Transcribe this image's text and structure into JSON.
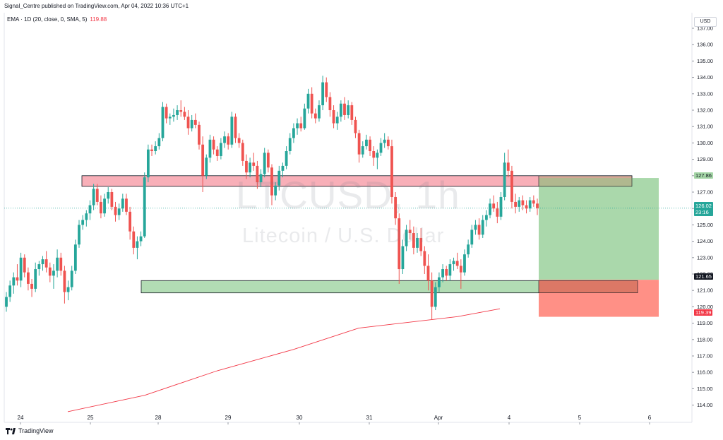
{
  "header": {
    "publisher": "Signal_Centre published on TradingView.com, Apr 04, 2022 10:36 UTC+1"
  },
  "indicator": {
    "label": "EMA · 1D (20, close, 0, SMA, 5)",
    "value": "119.88"
  },
  "watermark": {
    "symbol": "LTCUSD, 1h",
    "name": "Litecoin / U.S. Dollar"
  },
  "currency": "USD",
  "footer": {
    "brand": "TradingView"
  },
  "price_labels": {
    "target": "127.86",
    "current_price": "126.02",
    "countdown": "23:16",
    "entry": "121.65",
    "stop": "119.39"
  },
  "colors": {
    "up": "#26a69a",
    "down": "#ef5350",
    "ema": "#f23645",
    "resistance_fill": "#f7a1ac",
    "support_fill": "#a5d6a7",
    "profit_zone": "#a5d6a7",
    "loss_zone": "#ff8a80"
  },
  "chart_data": {
    "type": "candlestick",
    "symbol": "LTCUSD",
    "interval": "1h",
    "y_range": [
      113.5,
      137.6
    ],
    "y_ticks": [
      "137.00",
      "136.00",
      "135.00",
      "134.00",
      "133.00",
      "132.00",
      "131.00",
      "130.00",
      "129.00",
      "128.00",
      "127.00",
      "126.00",
      "125.00",
      "124.00",
      "123.00",
      "122.00",
      "121.00",
      "120.00",
      "119.00",
      "118.00",
      "117.00",
      "116.00",
      "115.00",
      "114.00"
    ],
    "x_ticks": [
      "24",
      "25",
      "28",
      "29",
      "30",
      "31",
      "Apr",
      "4",
      "5",
      "6"
    ],
    "ohlc": [
      [
        120.0,
        120.9,
        119.7,
        120.6
      ],
      [
        120.6,
        121.6,
        120.3,
        121.3
      ],
      [
        121.3,
        122.1,
        120.8,
        121.8
      ],
      [
        121.8,
        122.6,
        121.3,
        121.6
      ],
      [
        121.6,
        123.3,
        121.2,
        123.0
      ],
      [
        123.0,
        123.2,
        121.8,
        122.1
      ],
      [
        122.1,
        122.4,
        121.0,
        121.4
      ],
      [
        121.4,
        121.7,
        120.6,
        121.1
      ],
      [
        121.1,
        122.7,
        120.9,
        122.3
      ],
      [
        122.3,
        122.8,
        121.9,
        122.6
      ],
      [
        122.6,
        123.1,
        122.2,
        122.9
      ],
      [
        122.9,
        123.4,
        122.1,
        122.4
      ],
      [
        122.4,
        122.7,
        121.5,
        121.9
      ],
      [
        121.9,
        122.6,
        121.1,
        122.2
      ],
      [
        122.2,
        123.5,
        121.8,
        123.0
      ],
      [
        123.0,
        123.3,
        121.9,
        122.2
      ],
      [
        122.2,
        122.5,
        120.2,
        120.9
      ],
      [
        120.9,
        121.6,
        120.4,
        121.2
      ],
      [
        121.2,
        122.5,
        121.0,
        122.2
      ],
      [
        122.2,
        124.1,
        122.0,
        123.8
      ],
      [
        123.8,
        125.3,
        123.6,
        125.0
      ],
      [
        125.0,
        125.6,
        124.7,
        125.3
      ],
      [
        125.3,
        125.9,
        124.9,
        125.7
      ],
      [
        125.7,
        126.5,
        125.3,
        126.2
      ],
      [
        126.2,
        127.5,
        125.9,
        127.2
      ],
      [
        127.2,
        127.5,
        126.2,
        126.4
      ],
      [
        126.4,
        126.8,
        125.4,
        125.7
      ],
      [
        125.7,
        126.9,
        125.5,
        126.6
      ],
      [
        126.6,
        127.3,
        126.3,
        127.0
      ],
      [
        127.0,
        127.2,
        125.9,
        126.1
      ],
      [
        126.1,
        126.4,
        125.2,
        125.6
      ],
      [
        125.6,
        126.3,
        125.3,
        126.0
      ],
      [
        126.0,
        126.9,
        125.8,
        126.6
      ],
      [
        126.6,
        126.9,
        125.6,
        125.8
      ],
      [
        125.8,
        126.1,
        124.1,
        124.6
      ],
      [
        124.6,
        124.9,
        123.2,
        123.6
      ],
      [
        123.6,
        124.3,
        122.9,
        124.0
      ],
      [
        124.0,
        124.6,
        123.7,
        124.3
      ],
      [
        124.3,
        128.2,
        124.2,
        127.9
      ],
      [
        127.9,
        129.9,
        127.6,
        129.6
      ],
      [
        129.6,
        129.9,
        129.2,
        129.5
      ],
      [
        129.5,
        130.1,
        129.3,
        129.8
      ],
      [
        129.8,
        130.6,
        129.6,
        130.3
      ],
      [
        130.3,
        132.5,
        130.1,
        132.2
      ],
      [
        132.2,
        132.4,
        131.2,
        131.5
      ],
      [
        131.5,
        131.8,
        131.1,
        131.6
      ],
      [
        131.6,
        132.1,
        131.3,
        131.7
      ],
      [
        131.7,
        132.3,
        131.4,
        132.0
      ],
      [
        132.0,
        132.6,
        131.6,
        131.9
      ],
      [
        131.9,
        132.2,
        131.4,
        131.6
      ],
      [
        131.6,
        132.0,
        130.5,
        130.9
      ],
      [
        130.9,
        131.7,
        130.7,
        131.4
      ],
      [
        131.4,
        131.8,
        130.9,
        131.1
      ],
      [
        131.1,
        131.3,
        129.6,
        129.9
      ],
      [
        129.9,
        130.4,
        127.0,
        128.0
      ],
      [
        128.0,
        129.3,
        127.8,
        129.1
      ],
      [
        129.1,
        130.5,
        128.8,
        130.2
      ],
      [
        130.2,
        130.4,
        129.3,
        129.6
      ],
      [
        129.6,
        129.8,
        128.9,
        129.2
      ],
      [
        129.2,
        130.3,
        129.0,
        130.0
      ],
      [
        130.0,
        130.7,
        129.7,
        130.4
      ],
      [
        130.4,
        130.6,
        129.6,
        129.9
      ],
      [
        129.9,
        131.9,
        129.7,
        131.6
      ],
      [
        131.6,
        131.8,
        130.0,
        130.3
      ],
      [
        130.3,
        130.6,
        129.7,
        130.0
      ],
      [
        130.0,
        130.2,
        128.6,
        128.9
      ],
      [
        128.9,
        129.3,
        127.8,
        128.2
      ],
      [
        128.2,
        129.1,
        127.9,
        128.8
      ],
      [
        128.8,
        129.4,
        128.3,
        128.6
      ],
      [
        128.6,
        128.9,
        127.2,
        127.6
      ],
      [
        127.6,
        128.4,
        127.3,
        128.1
      ],
      [
        128.1,
        129.7,
        127.9,
        129.4
      ],
      [
        129.4,
        129.6,
        128.2,
        128.5
      ],
      [
        128.5,
        128.7,
        126.2,
        126.8
      ],
      [
        126.8,
        127.6,
        126.5,
        127.4
      ],
      [
        127.4,
        128.6,
        127.1,
        128.3
      ],
      [
        128.3,
        128.8,
        127.9,
        128.6
      ],
      [
        128.6,
        129.8,
        128.4,
        129.5
      ],
      [
        129.5,
        130.6,
        129.3,
        130.3
      ],
      [
        130.3,
        131.2,
        130.0,
        130.9
      ],
      [
        130.9,
        131.5,
        130.5,
        131.2
      ],
      [
        131.2,
        131.6,
        130.7,
        130.9
      ],
      [
        130.9,
        132.4,
        130.8,
        132.1
      ],
      [
        132.1,
        133.3,
        131.8,
        133.0
      ],
      [
        133.0,
        133.4,
        131.5,
        131.8
      ],
      [
        131.8,
        132.1,
        131.2,
        131.5
      ],
      [
        131.5,
        132.6,
        131.3,
        132.3
      ],
      [
        132.3,
        134.1,
        132.0,
        133.7
      ],
      [
        133.7,
        134.0,
        132.5,
        132.8
      ],
      [
        132.8,
        133.1,
        131.6,
        132.0
      ],
      [
        132.0,
        132.3,
        130.9,
        131.2
      ],
      [
        131.2,
        131.9,
        130.8,
        131.6
      ],
      [
        131.6,
        132.6,
        131.3,
        132.4
      ],
      [
        132.4,
        132.8,
        131.4,
        131.7
      ],
      [
        131.7,
        132.6,
        131.5,
        132.3
      ],
      [
        132.3,
        132.5,
        131.1,
        131.4
      ],
      [
        131.4,
        131.6,
        130.3,
        130.6
      ],
      [
        130.6,
        130.8,
        128.8,
        129.3
      ],
      [
        129.3,
        130.1,
        129.1,
        129.8
      ],
      [
        129.8,
        130.5,
        129.6,
        130.2
      ],
      [
        130.2,
        130.4,
        129.2,
        129.5
      ],
      [
        129.5,
        129.8,
        128.6,
        129.1
      ],
      [
        129.1,
        129.6,
        128.4,
        129.4
      ],
      [
        129.4,
        130.3,
        129.2,
        130.0
      ],
      [
        130.0,
        130.6,
        129.7,
        130.2
      ],
      [
        130.2,
        130.4,
        129.6,
        129.8
      ],
      [
        129.8,
        130.2,
        126.3,
        126.7
      ],
      [
        126.7,
        127.0,
        125.0,
        125.4
      ],
      [
        125.4,
        125.7,
        121.4,
        122.3
      ],
      [
        122.3,
        124.1,
        122.0,
        123.7
      ],
      [
        123.7,
        125.0,
        123.4,
        124.7
      ],
      [
        124.7,
        125.3,
        124.1,
        124.5
      ],
      [
        124.5,
        124.9,
        123.2,
        123.6
      ],
      [
        123.6,
        124.5,
        123.3,
        124.2
      ],
      [
        124.2,
        124.8,
        123.1,
        123.4
      ],
      [
        123.4,
        123.7,
        122.0,
        122.5
      ],
      [
        122.5,
        123.2,
        121.0,
        121.6
      ],
      [
        121.6,
        122.1,
        119.2,
        120.0
      ],
      [
        120.0,
        121.5,
        119.8,
        121.2
      ],
      [
        121.2,
        122.1,
        120.9,
        121.8
      ],
      [
        121.8,
        122.6,
        121.5,
        122.3
      ],
      [
        122.3,
        122.5,
        121.6,
        121.9
      ],
      [
        121.9,
        122.9,
        121.6,
        122.6
      ],
      [
        122.6,
        123.0,
        122.2,
        122.8
      ],
      [
        122.8,
        123.3,
        122.3,
        122.5
      ],
      [
        122.5,
        122.9,
        121.1,
        122.1
      ],
      [
        122.1,
        123.5,
        121.9,
        123.2
      ],
      [
        123.2,
        124.1,
        123.0,
        123.8
      ],
      [
        123.8,
        125.0,
        123.6,
        124.7
      ],
      [
        124.7,
        125.3,
        124.4,
        125.0
      ],
      [
        125.0,
        125.4,
        124.1,
        124.4
      ],
      [
        124.4,
        125.6,
        124.2,
        125.3
      ],
      [
        125.3,
        125.9,
        124.9,
        125.6
      ],
      [
        125.6,
        126.6,
        125.4,
        126.3
      ],
      [
        126.3,
        126.8,
        125.8,
        126.0
      ],
      [
        126.0,
        126.4,
        125.1,
        125.5
      ],
      [
        125.5,
        127.0,
        125.3,
        126.7
      ],
      [
        126.7,
        129.4,
        126.5,
        128.8
      ],
      [
        128.8,
        129.6,
        127.9,
        128.3
      ],
      [
        128.3,
        128.6,
        126.0,
        126.4
      ],
      [
        126.4,
        126.9,
        125.7,
        126.1
      ],
      [
        126.1,
        126.7,
        125.8,
        126.5
      ],
      [
        126.5,
        126.8,
        125.9,
        126.2
      ],
      [
        126.2,
        126.5,
        125.7,
        126.0
      ],
      [
        126.0,
        126.7,
        125.8,
        126.5
      ],
      [
        126.5,
        126.8,
        126.1,
        126.3
      ],
      [
        126.3,
        126.6,
        125.6,
        126.02
      ]
    ],
    "ema_1d": {
      "name": "EMA · 1D (20, close, 0, SMA, 5)",
      "points": [
        [
          96,
          113.6
        ],
        [
          205,
          114.6
        ],
        [
          308,
          116.1
        ],
        [
          416,
          117.4
        ],
        [
          508,
          118.7
        ],
        [
          648,
          119.4
        ],
        [
          708,
          119.88
        ]
      ]
    },
    "zones": [
      {
        "name": "resistance",
        "low": 127.35,
        "high": 128.0
      },
      {
        "name": "support",
        "low": 120.85,
        "high": 121.6
      }
    ],
    "position": {
      "side": "long",
      "entry": 121.65,
      "target": 127.86,
      "stop": 119.39
    },
    "current_price": 126.02,
    "legend": "none",
    "grid": false
  }
}
